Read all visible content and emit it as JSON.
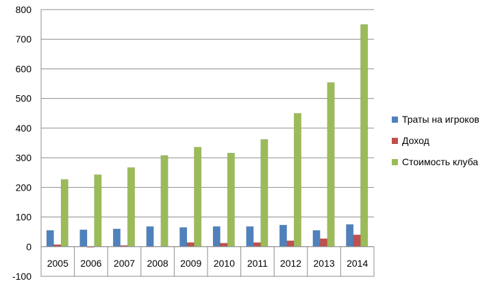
{
  "chart_data": {
    "type": "bar",
    "title": "",
    "xlabel": "",
    "ylabel": "",
    "ylim": [
      -100,
      800
    ],
    "yticks": [
      -100,
      0,
      100,
      200,
      300,
      400,
      500,
      600,
      700,
      800
    ],
    "grid": true,
    "legend_position": "right",
    "categories": [
      "2005",
      "2006",
      "2007",
      "2008",
      "2009",
      "2010",
      "2011",
      "2012",
      "2013",
      "2014"
    ],
    "series": [
      {
        "name": "Траты на игроков",
        "color": "#4F81BD",
        "values": [
          55,
          57,
          60,
          68,
          65,
          68,
          68,
          73,
          55,
          75
        ]
      },
      {
        "name": "Доход",
        "color": "#C0504D",
        "values": [
          7,
          -2,
          4,
          0,
          14,
          12,
          14,
          20,
          27,
          40
        ]
      },
      {
        "name": "Стоимость клуба",
        "color": "#9BBB59",
        "values": [
          227,
          243,
          267,
          308,
          336,
          316,
          362,
          450,
          554,
          750
        ]
      }
    ]
  }
}
